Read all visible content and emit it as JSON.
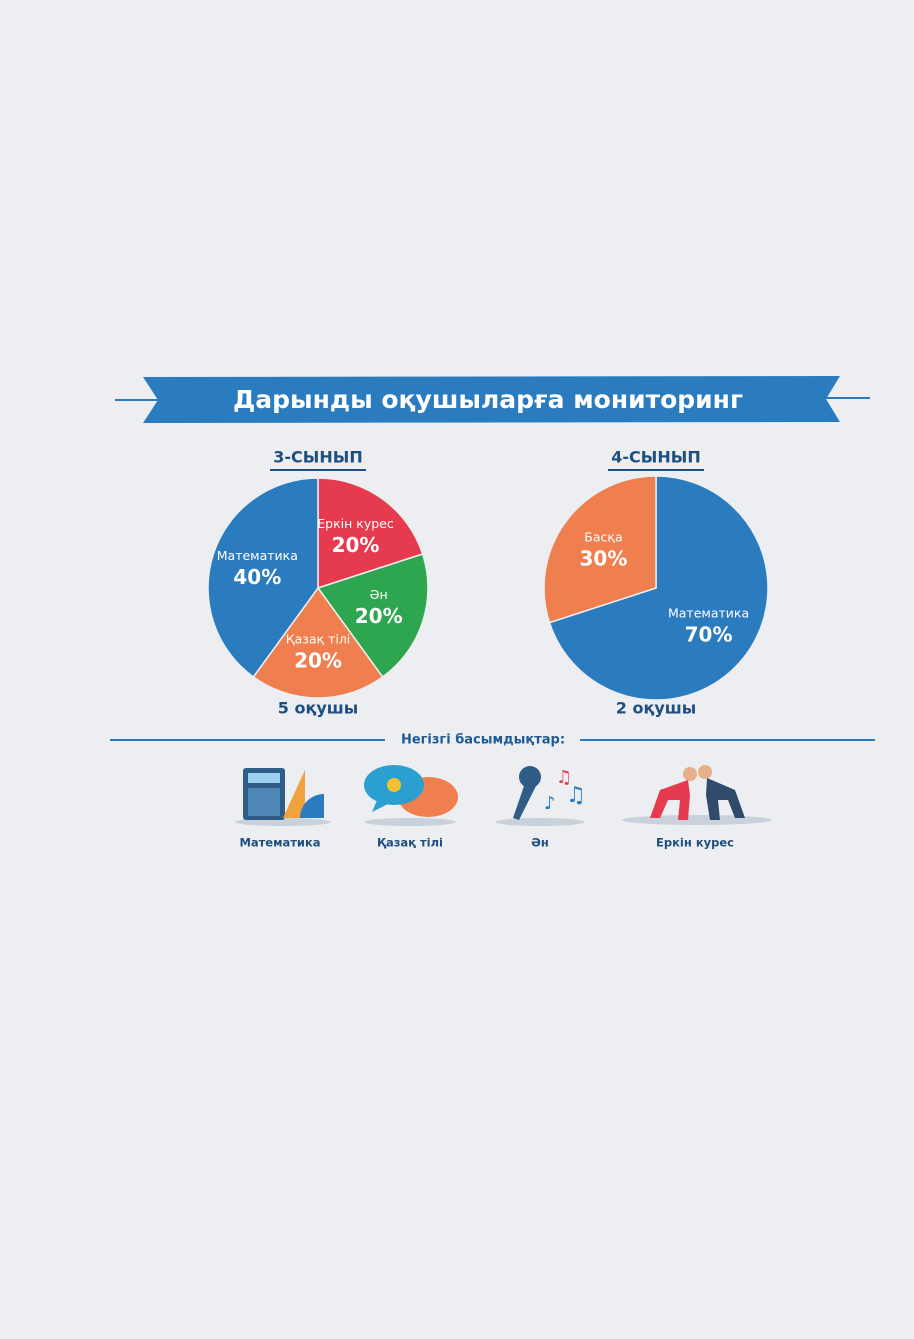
{
  "header": {
    "title": "Дарынды оқушыларға мониторинг"
  },
  "chart_data": [
    {
      "type": "pie",
      "title": "3-СЫНЫП",
      "note": "5 оқушы",
      "categories": [
        "Еркін курес",
        "Ән",
        "Қазақ тілі",
        "Математика"
      ],
      "values": [
        20,
        20,
        20,
        40
      ],
      "value_labels": [
        "20%",
        "20%",
        "20%",
        "40%"
      ],
      "colors": [
        "#e63b4e",
        "#2ea64f",
        "#ef7f4e",
        "#2b7cbf"
      ]
    },
    {
      "type": "pie",
      "title": "4-СЫНЫП",
      "note": "2 оқушы",
      "categories": [
        "Математика",
        "Басқа"
      ],
      "values": [
        70,
        30
      ],
      "value_labels": [
        "70%",
        "30%"
      ],
      "colors": [
        "#2b7cbf",
        "#ef7f4e"
      ]
    }
  ],
  "priorities": {
    "title": "Негізгі басымдықтар:",
    "items": [
      "Математика",
      "Қазақ тілі",
      "Ән",
      "Еркін курес"
    ]
  }
}
